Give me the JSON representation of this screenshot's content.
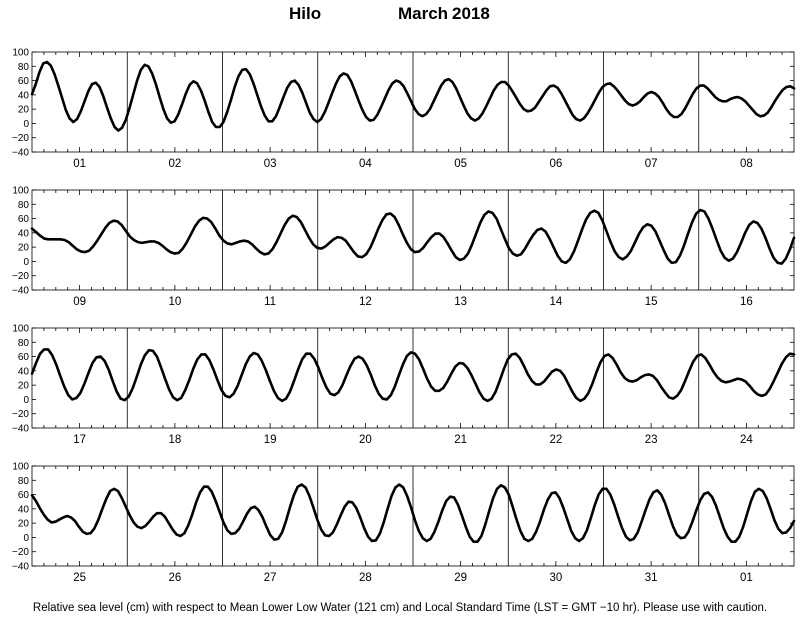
{
  "title": {
    "station": "Hilo",
    "month": "March",
    "year": "2018"
  },
  "footnote": "Relative sea level (cm) with respect to Mean Lower Low Water (121 cm) and Local Standard Time (LST = GMT −10 hr). Please use with caution.",
  "chart_data": {
    "type": "line",
    "ylim": [
      -40,
      100
    ],
    "yticks": [
      "100",
      "80",
      "60",
      "40",
      "20",
      "0",
      "−20",
      "−40"
    ],
    "grid": false,
    "x_unit": "day of month",
    "panels": [
      {
        "days": [
          "01",
          "02",
          "03",
          "04",
          "05",
          "06",
          "07",
          "08"
        ],
        "start_day": 1,
        "samples": [
          41,
          55,
          72,
          84,
          86,
          81,
          69,
          53,
          36,
          19,
          7,
          2,
          6,
          17,
          31,
          45,
          55,
          57,
          51,
          38,
          22,
          7,
          -5,
          -10,
          -6,
          5,
          22,
          41,
          60,
          75,
          82,
          80,
          70,
          55,
          37,
          20,
          7,
          1,
          3,
          13,
          27,
          42,
          54,
          59,
          56,
          46,
          32,
          16,
          2,
          -5,
          -5,
          2,
          16,
          33,
          51,
          66,
          75,
          76,
          69,
          56,
          40,
          24,
          11,
          3,
          3,
          10,
          23,
          37,
          50,
          58,
          60,
          54,
          43,
          29,
          15,
          6,
          2,
          6,
          16,
          29,
          43,
          56,
          66,
          70,
          68,
          59,
          46,
          32,
          19,
          9,
          4,
          5,
          12,
          23,
          35,
          47,
          56,
          60,
          58,
          52,
          42,
          31,
          20,
          13,
          10,
          13,
          20,
          31,
          42,
          53,
          60,
          62,
          58,
          49,
          37,
          25,
          14,
          7,
          4,
          7,
          14,
          24,
          35,
          46,
          54,
          58,
          58,
          53,
          45,
          36,
          27,
          20,
          17,
          18,
          22,
          30,
          38,
          46,
          52,
          53,
          50,
          42,
          32,
          22,
          12,
          6,
          4,
          7,
          14,
          23,
          33,
          43,
          51,
          55,
          56,
          52,
          46,
          39,
          32,
          27,
          25,
          27,
          31,
          37,
          42,
          44,
          42,
          37,
          29,
          20,
          13,
          9,
          9,
          13,
          21,
          31,
          41,
          49,
          53,
          53,
          49,
          43,
          37,
          33,
          31,
          31,
          34,
          36,
          37,
          35,
          31,
          25,
          19,
          13,
          10,
          11,
          15,
          23,
          32,
          40,
          47,
          51,
          52,
          49
        ]
      },
      {
        "days": [
          "09",
          "10",
          "11",
          "12",
          "13",
          "14",
          "15",
          "16"
        ],
        "start_day": 9,
        "samples": [
          46,
          41,
          36,
          32,
          31,
          31,
          31,
          31,
          30,
          27,
          22,
          17,
          14,
          13,
          15,
          21,
          29,
          38,
          47,
          54,
          57,
          56,
          51,
          43,
          35,
          30,
          27,
          26,
          27,
          28,
          28,
          26,
          22,
          17,
          13,
          11,
          12,
          18,
          27,
          38,
          49,
          57,
          61,
          60,
          55,
          46,
          36,
          29,
          25,
          24,
          26,
          28,
          29,
          28,
          24,
          18,
          13,
          10,
          11,
          17,
          27,
          39,
          51,
          60,
          64,
          62,
          55,
          44,
          33,
          24,
          19,
          18,
          21,
          26,
          31,
          34,
          33,
          29,
          21,
          13,
          7,
          6,
          10,
          19,
          32,
          46,
          58,
          66,
          67,
          62,
          51,
          38,
          26,
          17,
          13,
          14,
          19,
          27,
          34,
          39,
          39,
          34,
          25,
          15,
          6,
          2,
          4,
          11,
          24,
          39,
          54,
          65,
          70,
          68,
          60,
          46,
          32,
          19,
          11,
          8,
          10,
          18,
          28,
          37,
          44,
          46,
          42,
          32,
          20,
          8,
          0,
          -2,
          3,
          14,
          29,
          45,
          59,
          68,
          71,
          68,
          57,
          42,
          27,
          14,
          6,
          3,
          7,
          15,
          27,
          39,
          48,
          52,
          50,
          42,
          29,
          16,
          4,
          -2,
          -1,
          8,
          22,
          39,
          55,
          67,
          72,
          70,
          60,
          46,
          30,
          15,
          5,
          1,
          4,
          13,
          26,
          40,
          51,
          56,
          54,
          46,
          33,
          18,
          5,
          -2,
          -3,
          4,
          17,
          33
        ]
      },
      {
        "days": [
          "17",
          "18",
          "19",
          "20",
          "21",
          "22",
          "23",
          "24"
        ],
        "start_day": 17,
        "samples": [
          36,
          51,
          64,
          70,
          70,
          62,
          49,
          33,
          18,
          6,
          0,
          2,
          9,
          22,
          37,
          51,
          59,
          60,
          54,
          42,
          26,
          11,
          1,
          -1,
          4,
          16,
          32,
          49,
          62,
          69,
          68,
          60,
          45,
          29,
          14,
          3,
          -1,
          2,
          13,
          27,
          43,
          56,
          63,
          63,
          55,
          42,
          27,
          13,
          5,
          3,
          8,
          19,
          34,
          49,
          60,
          65,
          63,
          54,
          41,
          26,
          12,
          2,
          -2,
          1,
          11,
          26,
          42,
          56,
          64,
          64,
          57,
          45,
          30,
          17,
          8,
          6,
          10,
          20,
          34,
          47,
          57,
          60,
          57,
          48,
          35,
          20,
          8,
          1,
          0,
          6,
          18,
          34,
          49,
          61,
          66,
          64,
          56,
          43,
          29,
          18,
          12,
          12,
          16,
          25,
          36,
          46,
          51,
          50,
          44,
          34,
          22,
          10,
          1,
          -2,
          1,
          11,
          26,
          42,
          56,
          63,
          64,
          58,
          47,
          35,
          26,
          21,
          21,
          25,
          32,
          39,
          42,
          40,
          33,
          22,
          11,
          2,
          -2,
          1,
          9,
          22,
          38,
          52,
          61,
          63,
          58,
          49,
          38,
          30,
          26,
          25,
          27,
          31,
          34,
          35,
          33,
          27,
          18,
          10,
          3,
          1,
          5,
          13,
          26,
          40,
          53,
          61,
          63,
          58,
          49,
          39,
          31,
          26,
          24,
          25,
          27,
          29,
          28,
          25,
          19,
          12,
          7,
          5,
          7,
          15,
          26,
          38,
          50,
          59,
          64,
          63
        ]
      },
      {
        "days": [
          "25",
          "26",
          "27",
          "28",
          "29",
          "30",
          "31",
          "01"
        ],
        "start_day": 25,
        "samples": [
          59,
          51,
          41,
          32,
          25,
          21,
          22,
          25,
          28,
          30,
          28,
          23,
          15,
          8,
          5,
          6,
          13,
          25,
          40,
          54,
          65,
          68,
          65,
          55,
          43,
          31,
          21,
          15,
          13,
          16,
          22,
          29,
          34,
          34,
          29,
          20,
          11,
          4,
          2,
          6,
          17,
          32,
          49,
          63,
          71,
          71,
          64,
          51,
          36,
          21,
          10,
          5,
          6,
          12,
          22,
          33,
          41,
          43,
          38,
          28,
          15,
          3,
          -3,
          -2,
          7,
          23,
          42,
          59,
          71,
          74,
          70,
          58,
          42,
          25,
          11,
          3,
          2,
          7,
          18,
          31,
          43,
          50,
          49,
          41,
          28,
          13,
          1,
          -5,
          -4,
          5,
          21,
          40,
          58,
          70,
          74,
          70,
          58,
          42,
          24,
          9,
          -1,
          -5,
          -2,
          8,
          22,
          38,
          51,
          57,
          56,
          46,
          31,
          15,
          1,
          -6,
          -6,
          2,
          18,
          37,
          55,
          68,
          73,
          70,
          60,
          43,
          25,
          9,
          -2,
          -5,
          -2,
          8,
          22,
          39,
          53,
          62,
          63,
          55,
          41,
          25,
          9,
          -1,
          -5,
          -1,
          10,
          27,
          45,
          60,
          68,
          68,
          60,
          46,
          29,
          13,
          1,
          -4,
          -2,
          7,
          22,
          38,
          53,
          63,
          66,
          60,
          48,
          32,
          16,
          4,
          -1,
          0,
          8,
          22,
          38,
          52,
          61,
          63,
          57,
          45,
          29,
          13,
          1,
          -6,
          -6,
          1,
          15,
          33,
          51,
          64,
          68,
          65,
          55,
          40,
          24,
          12,
          6,
          7,
          13,
          23
        ]
      }
    ]
  }
}
